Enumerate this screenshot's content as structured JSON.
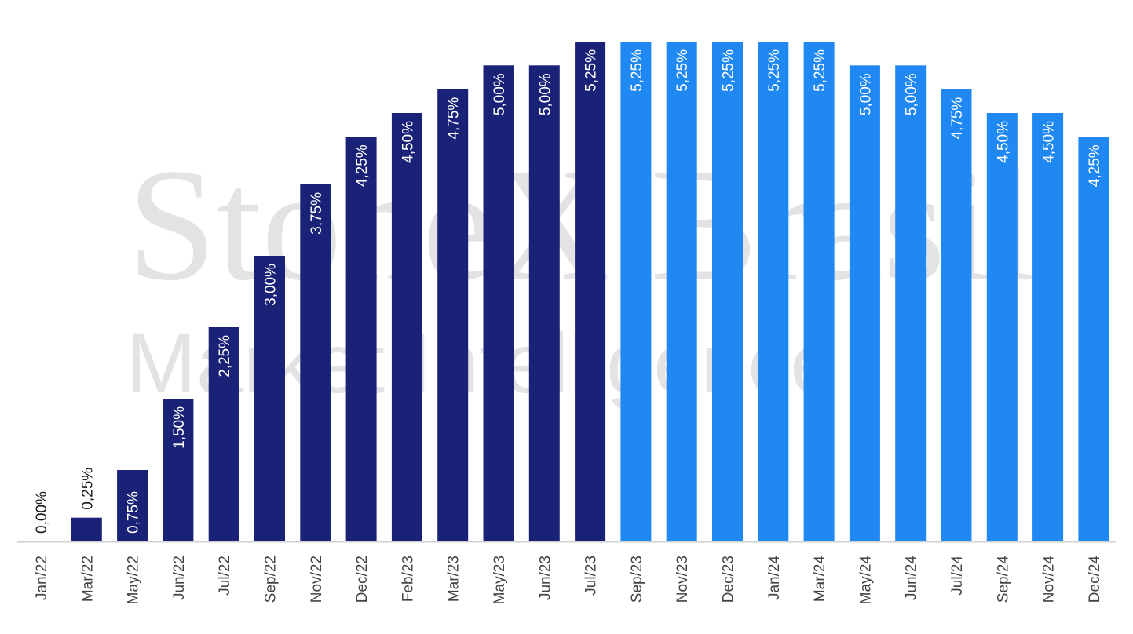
{
  "watermark": {
    "line1": "StoneX Brasil",
    "line2": "Market Intelligence"
  },
  "colors": {
    "historical": "#1a2278",
    "projection": "#1f88f2",
    "label_inside": "#ffffff",
    "label_outside": "#1a1a1a",
    "axis_tick": "#444444",
    "axis_line": "#d0d0d0",
    "watermark": "#e3e3e5"
  },
  "chart_data": {
    "type": "bar",
    "title": "",
    "xlabel": "",
    "ylabel": "",
    "ylim": [
      0,
      5.25
    ],
    "grid": false,
    "legend": "none",
    "categories": [
      "Jan/22",
      "Mar/22",
      "May/22",
      "Jun/22",
      "Jul/22",
      "Sep/22",
      "Nov/22",
      "Dec/22",
      "Feb/23",
      "Mar/23",
      "May/23",
      "Jun/23",
      "Jul/23",
      "Sep/23",
      "Nov/23",
      "Dec/23",
      "Jan/24",
      "Mar/24",
      "May/24",
      "Jun/24",
      "Jul/24",
      "Sep/24",
      "Nov/24",
      "Dec/24"
    ],
    "values": [
      0.0,
      0.25,
      0.75,
      1.5,
      2.25,
      3.0,
      3.75,
      4.25,
      4.5,
      4.75,
      5.0,
      5.0,
      5.25,
      5.25,
      5.25,
      5.25,
      5.25,
      5.25,
      5.0,
      5.0,
      4.75,
      4.5,
      4.5,
      4.25
    ],
    "value_labels": [
      "0,00%",
      "0,25%",
      "0,75%",
      "1,50%",
      "2,25%",
      "3,00%",
      "3,75%",
      "4,25%",
      "4,50%",
      "4,75%",
      "5,00%",
      "5,00%",
      "5,25%",
      "5,25%",
      "5,25%",
      "5,25%",
      "5,25%",
      "5,25%",
      "5,00%",
      "5,00%",
      "4,75%",
      "4,50%",
      "4,50%",
      "4,25%"
    ],
    "bar_colors": [
      "historical",
      "historical",
      "historical",
      "historical",
      "historical",
      "historical",
      "historical",
      "historical",
      "historical",
      "historical",
      "historical",
      "historical",
      "historical",
      "projection",
      "projection",
      "projection",
      "projection",
      "projection",
      "projection",
      "projection",
      "projection",
      "projection",
      "projection",
      "projection"
    ]
  }
}
